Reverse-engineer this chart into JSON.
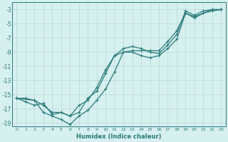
{
  "xlabel": "Humidex (Indice chaleur)",
  "ylabel": "",
  "background_color": "#d6efef",
  "grid_color": "#c0dada",
  "line_color": "#2a7a7a",
  "xlim": [
    -0.5,
    23.5
  ],
  "ylim": [
    -19.5,
    -2.0
  ],
  "yticks": [
    -3,
    -5,
    -7,
    -9,
    -11,
    -13,
    -15,
    -17,
    -19
  ],
  "xticks": [
    0,
    1,
    2,
    3,
    4,
    5,
    6,
    7,
    8,
    9,
    10,
    11,
    12,
    13,
    14,
    15,
    16,
    17,
    18,
    19,
    20,
    21,
    22,
    23
  ],
  "line1_x": [
    0,
    1,
    2,
    3,
    4,
    5,
    6,
    7,
    8,
    9,
    10,
    11,
    12,
    13,
    14,
    15,
    16,
    17,
    18,
    19,
    20,
    21,
    22,
    23
  ],
  "line1_y": [
    -15.5,
    -16.0,
    -16.5,
    -16.2,
    -17.8,
    -17.5,
    -18.0,
    -16.5,
    -15.8,
    -14.0,
    -11.5,
    -9.5,
    -8.5,
    -8.2,
    -8.5,
    -9.0,
    -9.2,
    -8.0,
    -6.5,
    -3.2,
    -3.8,
    -3.2,
    -3.0,
    -3.0
  ],
  "line2_x": [
    0,
    2,
    3,
    4,
    5,
    6,
    7,
    8,
    9,
    10,
    11,
    12,
    13,
    14,
    15,
    16,
    17,
    18,
    19,
    20,
    21,
    22,
    23
  ],
  "line2_y": [
    -15.5,
    -15.8,
    -16.5,
    -17.5,
    -17.5,
    -18.0,
    -17.5,
    -15.5,
    -14.5,
    -12.0,
    -9.5,
    -9.0,
    -9.0,
    -9.5,
    -9.8,
    -9.5,
    -8.5,
    -7.2,
    -3.5,
    -4.2,
    -3.5,
    -3.2,
    -3.0
  ],
  "line3_x": [
    0,
    1,
    2,
    3,
    4,
    5,
    6,
    7,
    8,
    9,
    10,
    11,
    12,
    13,
    14,
    15,
    16,
    17,
    18,
    19,
    20,
    21,
    22,
    23
  ],
  "line3_y": [
    -15.5,
    -15.5,
    -15.8,
    -17.5,
    -18.0,
    -18.5,
    -19.2,
    -18.0,
    -17.2,
    -15.8,
    -14.2,
    -11.8,
    -9.0,
    -8.8,
    -8.8,
    -8.8,
    -8.8,
    -7.5,
    -6.0,
    -3.5,
    -4.0,
    -3.5,
    -3.0,
    -3.0
  ]
}
